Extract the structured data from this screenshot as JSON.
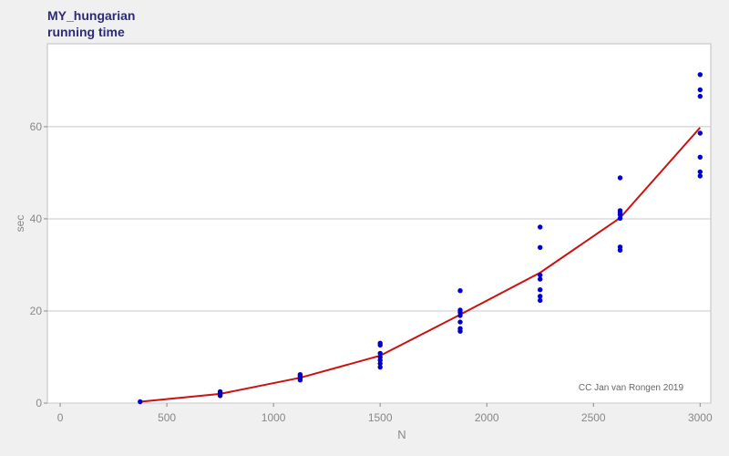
{
  "chart_data": {
    "type": "scatter",
    "title": "MY_hungarian",
    "subtitle": "running time",
    "xlabel": "N",
    "ylabel": "sec",
    "xlim": [
      -60,
      3050
    ],
    "ylim": [
      0,
      78
    ],
    "xticks": [
      0,
      500,
      1000,
      1500,
      2000,
      2500,
      3000
    ],
    "yticks": [
      0,
      20,
      40,
      60
    ],
    "grid": "horizontal",
    "annotation": "CC Jan van Rongen 2019",
    "colors": {
      "points": "#0000cc",
      "line": "#cc1111",
      "grid": "#c8c8c8",
      "axis_text": "#888888"
    },
    "points": [
      [
        375,
        0.3
      ],
      [
        750,
        1.6
      ],
      [
        750,
        1.9
      ],
      [
        750,
        2.2
      ],
      [
        750,
        2.5
      ],
      [
        1125,
        5.0
      ],
      [
        1125,
        5.4
      ],
      [
        1125,
        5.7
      ],
      [
        1125,
        6.0
      ],
      [
        1125,
        6.2
      ],
      [
        1500,
        7.8
      ],
      [
        1500,
        8.6
      ],
      [
        1500,
        9.3
      ],
      [
        1500,
        10.0
      ],
      [
        1500,
        10.8
      ],
      [
        1500,
        12.6
      ],
      [
        1500,
        13.0
      ],
      [
        1875,
        15.6
      ],
      [
        1875,
        16.2
      ],
      [
        1875,
        17.6
      ],
      [
        1875,
        19.0
      ],
      [
        1875,
        19.7
      ],
      [
        1875,
        20.2
      ],
      [
        1875,
        24.4
      ],
      [
        2250,
        22.3
      ],
      [
        2250,
        23.2
      ],
      [
        2250,
        24.6
      ],
      [
        2250,
        26.9
      ],
      [
        2250,
        27.8
      ],
      [
        2250,
        33.8
      ],
      [
        2250,
        38.2
      ],
      [
        2625,
        33.2
      ],
      [
        2625,
        33.9
      ],
      [
        2625,
        40.1
      ],
      [
        2625,
        40.9
      ],
      [
        2625,
        41.4
      ],
      [
        2625,
        41.8
      ],
      [
        2625,
        48.9
      ],
      [
        3000,
        49.3
      ],
      [
        3000,
        50.2
      ],
      [
        3000,
        53.4
      ],
      [
        3000,
        58.6
      ],
      [
        3000,
        66.6
      ],
      [
        3000,
        68.0
      ],
      [
        3000,
        71.3
      ]
    ],
    "line": [
      [
        375,
        0.3
      ],
      [
        750,
        2.0
      ],
      [
        1125,
        5.5
      ],
      [
        1500,
        10.3
      ],
      [
        1875,
        19.2
      ],
      [
        2250,
        28.3
      ],
      [
        2625,
        40.2
      ],
      [
        3000,
        59.8
      ]
    ]
  }
}
